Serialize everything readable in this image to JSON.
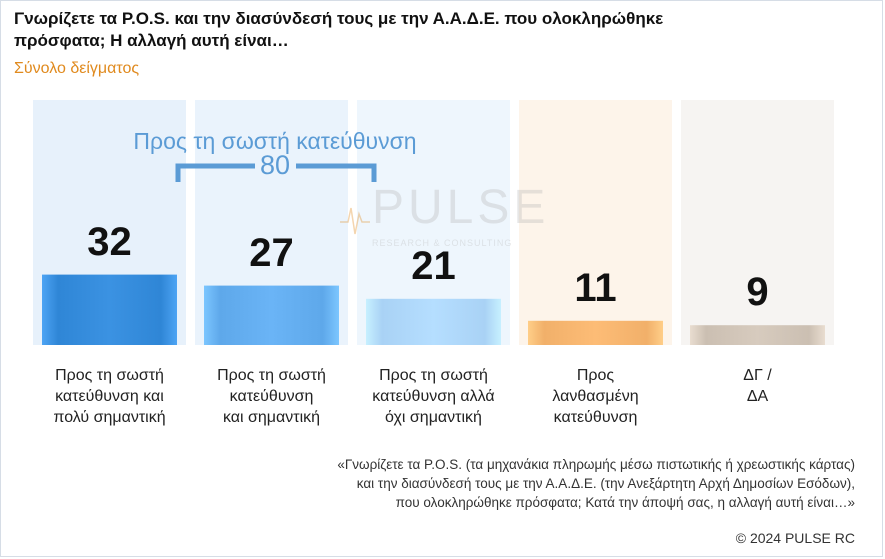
{
  "header": {
    "title": "Γνωρίζετε τα P.O.S. και την διασύνδεσή τους με την Α.Α.Δ.Ε. που ολοκληρώθηκε πρόσφατα; Η αλλαγή αυτή είναι…",
    "subtitle": "Σύνολο δείγματος"
  },
  "group": {
    "label": "Προς τη σωστή κατεύθυνση",
    "value": "80"
  },
  "watermark": {
    "name": "PULSE",
    "tagline": "RESEARCH & CONSULTING"
  },
  "chart_data": {
    "type": "bar",
    "categories": [
      "Προς τη σωστή κατεύθυνση και πολύ σημαντική",
      "Προς τη σωστή κατεύθυνση και σημαντική",
      "Προς τη σωστή κατεύθυνση αλλά όχι σημαντική",
      "Προς λανθασμένη κατεύθυνση",
      "ΔΓ / ΔΑ"
    ],
    "category_lines": [
      [
        "Προς τη σωστή",
        "κατεύθυνση και",
        "πολύ σημαντική"
      ],
      [
        "Προς τη σωστή",
        "κατεύθυνση",
        "και σημαντική"
      ],
      [
        "Προς τη σωστή",
        "κατεύθυνση αλλά",
        "όχι σημαντική"
      ],
      [
        "Προς",
        "λανθασμένη",
        "κατεύθυνση"
      ],
      [
        "ΔΓ /",
        "ΔΑ"
      ]
    ],
    "values": [
      32,
      27,
      21,
      11,
      9
    ],
    "colors": [
      "#2f86d6",
      "#5ea8ea",
      "#a9d2f5",
      "#f1b06a",
      "#cbbfb2"
    ],
    "bg_colors": [
      "#e7f1fb",
      "#eaf3fc",
      "#eef6fd",
      "#fdf4ea",
      "#f6f4f2"
    ],
    "ylim": [
      0,
      100
    ],
    "grid": false,
    "legend": "none"
  },
  "footer": {
    "footnote_lines": [
      "«Γνωρίζετε τα P.O.S. (τα μηχανάκια πληρωμής μέσω πιστωτικής ή χρεωστικής κάρτας)",
      "και την διασύνδεσή τους με την Α.Α.Δ.Ε. (την Ανεξάρτητη Αρχή Δημοσίων Εσόδων),",
      "που ολοκληρώθηκε πρόσφατα; Κατά την άποψή σας, η αλλαγή αυτή είναι…»"
    ],
    "copyright": "© 2024 PULSE RC"
  }
}
